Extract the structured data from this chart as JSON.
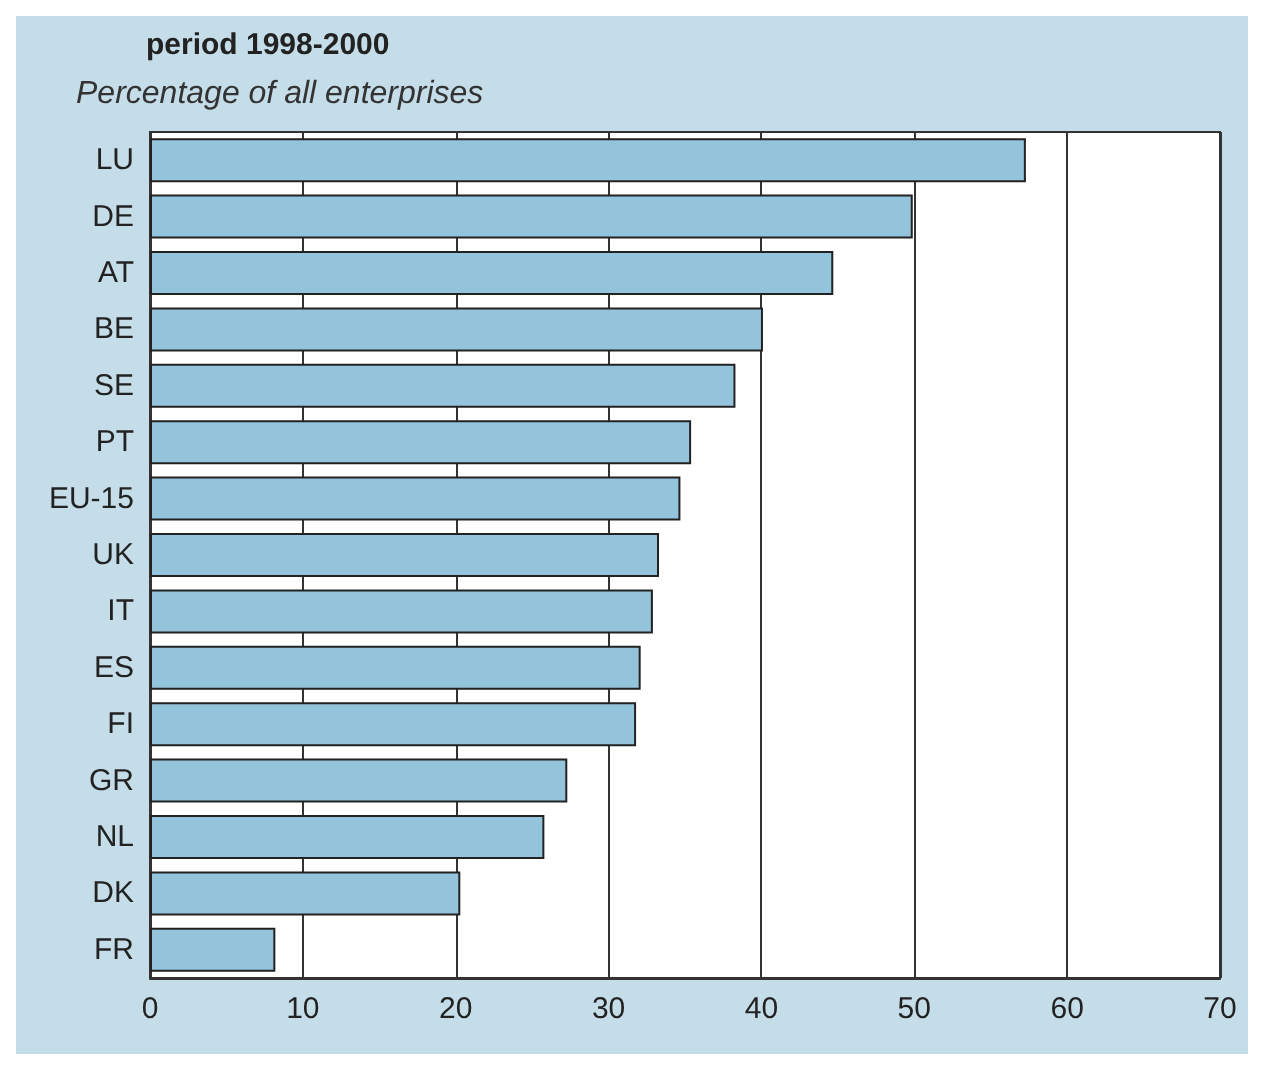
{
  "chart_data": {
    "type": "bar",
    "orientation": "horizontal",
    "title": "period 1998-2000",
    "subtitle": "Percentage of all enterprises",
    "categories": [
      "LU",
      "DE",
      "AT",
      "BE",
      "SE",
      "PT",
      "EU-15",
      "UK",
      "IT",
      "ES",
      "FI",
      "GR",
      "NL",
      "DK",
      "FR"
    ],
    "values": [
      57.3,
      49.9,
      44.7,
      40.1,
      38.3,
      35.4,
      34.7,
      33.3,
      32.9,
      32.1,
      31.8,
      27.3,
      25.8,
      20.3,
      8.2
    ],
    "color": "#94c3dc",
    "xlim": [
      0,
      70
    ],
    "xticks": [
      0,
      10,
      20,
      30,
      40,
      50,
      60,
      70
    ],
    "grid": "x"
  }
}
